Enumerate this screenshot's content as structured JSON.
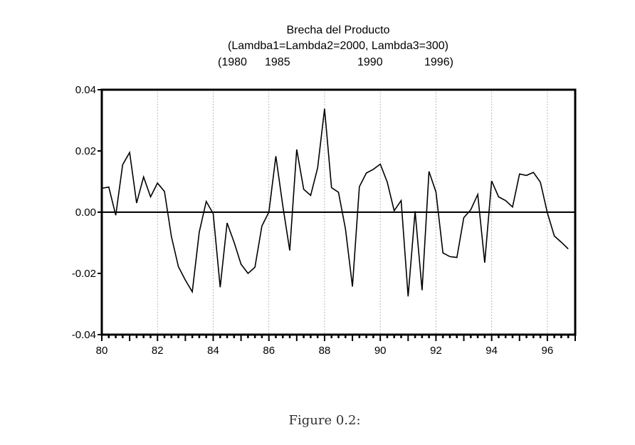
{
  "chart_data": {
    "type": "line",
    "title": "Brecha del Producto",
    "subtitle": "(Lamdba1=Lambda2=2000, Lambda3=300)",
    "subtitle2": {
      "open": "(1980",
      "items": [
        "1985",
        "1990"
      ],
      "close": "1996)"
    },
    "caption": "Figure 0.2:",
    "xlabel": "",
    "ylabel": "",
    "xlim": [
      80,
      97
    ],
    "ylim": [
      -0.04,
      0.04
    ],
    "xticks": [
      "80",
      "82",
      "84",
      "86",
      "88",
      "90",
      "92",
      "94",
      "96"
    ],
    "yticks": [
      "0.04",
      "0.02",
      "0.00",
      "-0.02",
      "-0.04"
    ],
    "grid": "vertical dotted at even years",
    "x_start": 80,
    "x_step": 0.25,
    "series": [
      {
        "name": "Brecha del Producto",
        "values": [
          0.0078,
          0.0082,
          -0.001,
          0.0155,
          0.0195,
          0.003,
          0.0115,
          0.005,
          0.0095,
          0.0068,
          -0.008,
          -0.0178,
          -0.0222,
          -0.026,
          -0.0065,
          0.0035,
          -0.0005,
          -0.0245,
          -0.0035,
          -0.0098,
          -0.017,
          -0.02,
          -0.018,
          -0.0045,
          0.0,
          0.0183,
          0.002,
          -0.0125,
          0.0205,
          0.0075,
          0.0055,
          0.0145,
          0.0338,
          0.008,
          0.0065,
          -0.0055,
          -0.0243,
          0.0083,
          0.0128,
          0.014,
          0.0157,
          0.0098,
          0.0005,
          0.0038,
          -0.0275,
          0.0003,
          -0.0255,
          0.0133,
          0.0066,
          -0.0133,
          -0.0145,
          -0.0148,
          -0.0018,
          0.0008,
          0.0058,
          -0.0165,
          0.0102,
          0.005,
          0.0038,
          0.0017,
          0.0125,
          0.012,
          0.013,
          0.0098,
          -0.0002,
          -0.0078,
          -0.0098,
          -0.012
        ]
      }
    ]
  }
}
